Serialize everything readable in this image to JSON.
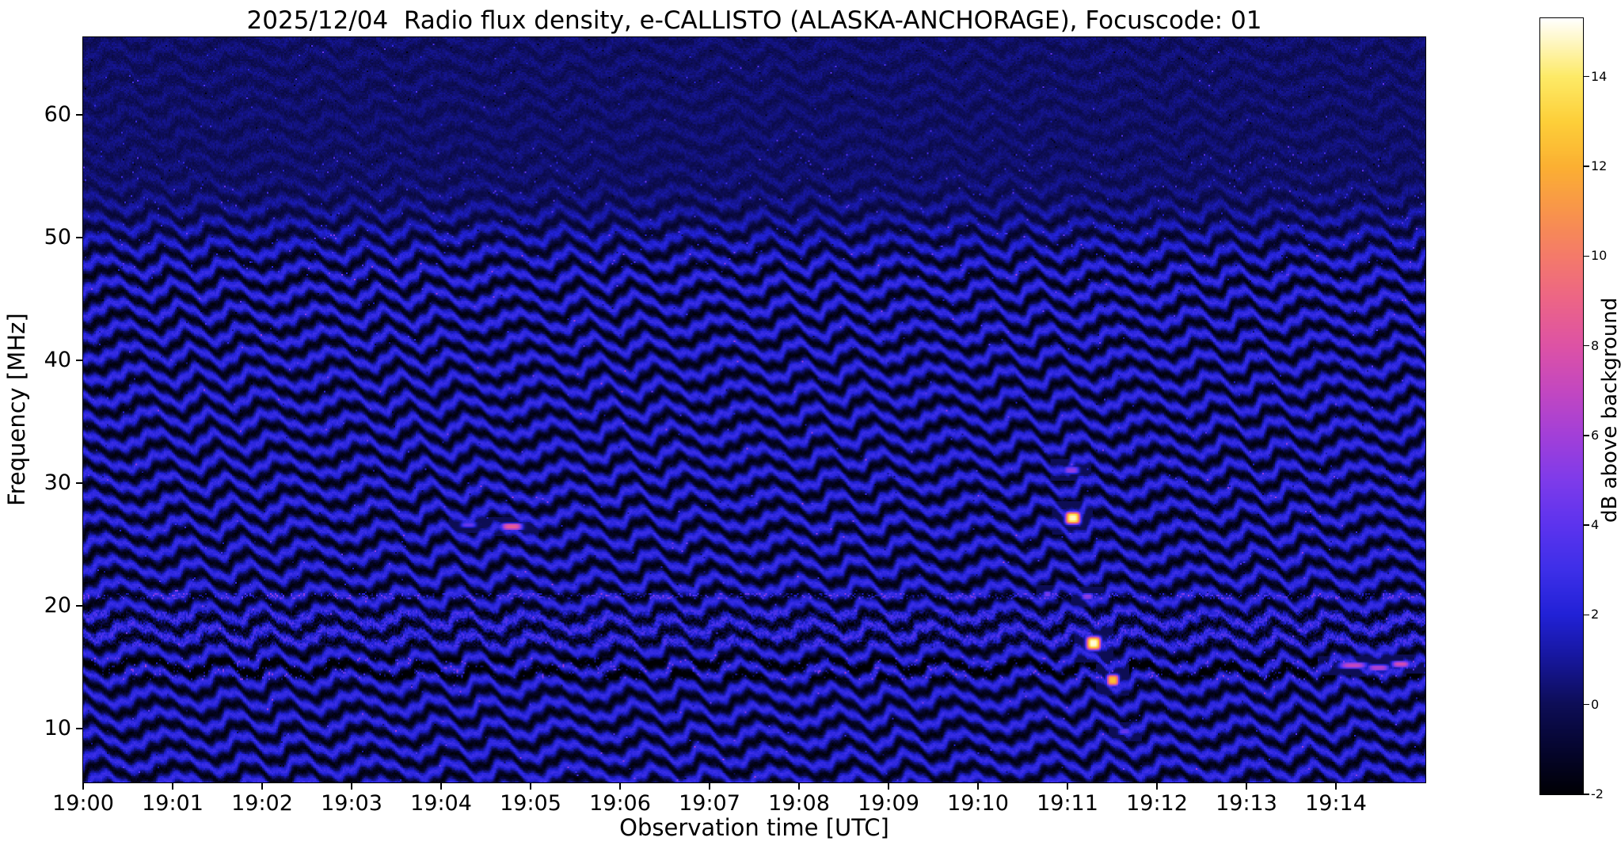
{
  "chart_data": {
    "type": "heatmap",
    "title": "2025/12/04  Radio flux density, e-CALLISTO (ALASKA-ANCHORAGE), Focuscode: 01",
    "xlabel": "Observation time [UTC]",
    "ylabel": "Frequency [MHz]",
    "colorbar_label": "dB above background",
    "x_tick_labels": [
      "19:00",
      "19:01",
      "19:02",
      "19:03",
      "19:04",
      "19:05",
      "19:06",
      "19:07",
      "19:08",
      "19:09",
      "19:10",
      "19:11",
      "19:12",
      "19:13",
      "19:14"
    ],
    "x_tick_minutes": [
      0,
      1,
      2,
      3,
      4,
      5,
      6,
      7,
      8,
      9,
      10,
      11,
      12,
      13,
      14
    ],
    "xlim_minutes": [
      0,
      15
    ],
    "y_ticks_mhz": [
      10,
      20,
      30,
      40,
      50,
      60
    ],
    "ylim_mhz": [
      5.6,
      66.3
    ],
    "colorbar_ticks": [
      -2,
      0,
      2,
      4,
      6,
      8,
      10,
      12,
      14
    ],
    "colorbar_range_db": [
      -2,
      15.3
    ],
    "legend_position": "right-colorbar",
    "grid": false,
    "colormap": {
      "name": "gnuplot2-like (black-blue-violet-pink-orange-yellow-white)",
      "stops": [
        {
          "v": -2.0,
          "c": "#000004"
        },
        {
          "v": -1.0,
          "c": "#05052e"
        },
        {
          "v": 0.0,
          "c": "#0d0d56"
        },
        {
          "v": 1.0,
          "c": "#16169a"
        },
        {
          "v": 2.0,
          "c": "#2121d6"
        },
        {
          "v": 3.0,
          "c": "#3d2fe8"
        },
        {
          "v": 4.0,
          "c": "#5c33ee"
        },
        {
          "v": 5.0,
          "c": "#7e3bea"
        },
        {
          "v": 6.0,
          "c": "#a23fd8"
        },
        {
          "v": 7.0,
          "c": "#c347c0"
        },
        {
          "v": 8.0,
          "c": "#dd52a5"
        },
        {
          "v": 9.0,
          "c": "#ec6487"
        },
        {
          "v": 10.0,
          "c": "#f47a69"
        },
        {
          "v": 11.0,
          "c": "#f8944b"
        },
        {
          "v": 12.0,
          "c": "#fbb032"
        },
        {
          "v": 13.0,
          "c": "#fdcf39"
        },
        {
          "v": 14.0,
          "c": "#fdea67"
        },
        {
          "v": 15.3,
          "c": "#ffffff"
        }
      ]
    },
    "background": {
      "description": "Dark blue dynamic spectrum with wavy quasi-horizontal ionospheric fringe bands (-1.5 to +2.5 dB) below ~46 MHz, fading to faint uniform dark blue above ~56 MHz with sparse speckle noise; dense mottled RFI band 16.6-19.6 MHz; dark absorption band with bright speckles 13.9-15.7 MHz; noisy dotted line near 20.75 MHz.",
      "base_db": 0.55,
      "fringe_amp_db": 1.5,
      "fringe_spacing_mhz": 1.75,
      "fringe_fade_above_mhz": [
        46,
        56
      ]
    },
    "features": [
      {
        "desc": "faint blue dash",
        "time_s": 258,
        "freq_mhz": 26.65,
        "half_width_s": 5,
        "half_height_mhz": 0.22,
        "peak_db": 4.2
      },
      {
        "desc": "pink dash",
        "time_s": 287,
        "freq_mhz": 26.5,
        "half_width_s": 7,
        "half_height_mhz": 0.28,
        "peak_db": 8.5
      },
      {
        "desc": "violet dash",
        "time_s": 662,
        "freq_mhz": 31.1,
        "half_width_s": 5,
        "half_height_mhz": 0.3,
        "peak_db": 5.5
      },
      {
        "desc": "bright white-yellow spot",
        "time_s": 663,
        "freq_mhz": 27.2,
        "half_width_s": 5,
        "half_height_mhz": 0.5,
        "peak_db": 14.8
      },
      {
        "desc": "small violet dot",
        "time_s": 646,
        "freq_mhz": 21.0,
        "half_width_s": 2.5,
        "half_height_mhz": 0.25,
        "peak_db": 4.8
      },
      {
        "desc": "violet dash",
        "time_s": 673,
        "freq_mhz": 20.8,
        "half_width_s": 4,
        "half_height_mhz": 0.28,
        "peak_db": 5.5
      },
      {
        "desc": "bright white-yellow spot",
        "time_s": 677,
        "freq_mhz": 17.0,
        "half_width_s": 5,
        "half_height_mhz": 0.55,
        "peak_db": 15.0
      },
      {
        "desc": "yellow spot",
        "time_s": 690,
        "freq_mhz": 14.0,
        "half_width_s": 4,
        "half_height_mhz": 0.45,
        "peak_db": 12.5
      },
      {
        "desc": "blue-violet dash",
        "time_s": 698,
        "freq_mhz": 9.8,
        "half_width_s": 4,
        "half_height_mhz": 0.25,
        "peak_db": 4.2
      },
      {
        "desc": "pink streak",
        "time_s": 851,
        "freq_mhz": 15.2,
        "half_width_s": 9,
        "half_height_mhz": 0.25,
        "peak_db": 7.0
      },
      {
        "desc": "pink streak",
        "time_s": 868,
        "freq_mhz": 15.0,
        "half_width_s": 7,
        "half_height_mhz": 0.25,
        "peak_db": 6.5
      },
      {
        "desc": "pink streak",
        "time_s": 883,
        "freq_mhz": 15.3,
        "half_width_s": 6,
        "half_height_mhz": 0.25,
        "peak_db": 7.5
      }
    ]
  }
}
